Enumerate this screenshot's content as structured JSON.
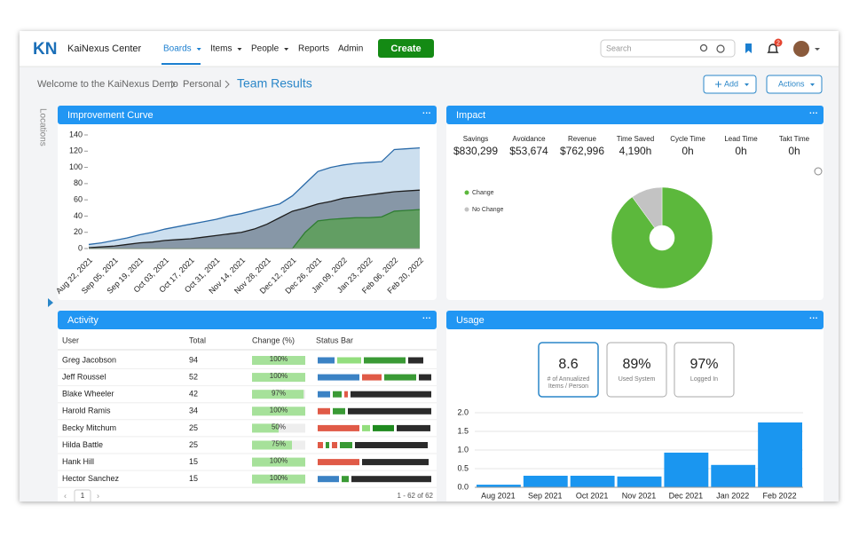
{
  "nav": {
    "logo": "KN",
    "app": "KaiNexus Center",
    "menu": [
      "Boards",
      "Items",
      "People",
      "Reports",
      "Admin"
    ],
    "create": "Create",
    "search": "Search",
    "badge": "2"
  },
  "breadcrumb": [
    "Welcome to the KaiNexus Demo",
    "Personal",
    "Team Results"
  ],
  "buttons": [
    "Add",
    "Actions"
  ],
  "sidebar": "Locations",
  "improvement": {
    "title": "Improvement Curve",
    "chart": {
      "type": "area",
      "categories": [
        "Aug 22, 2021",
        null,
        "Sep 05, 2021",
        null,
        "Sep 19, 2021",
        null,
        "Oct 03, 2021",
        null,
        "Oct 17, 2021",
        null,
        "Oct 31, 2021",
        null,
        "Nov 14, 2021",
        null,
        "Nov 28, 2021",
        null,
        "Dec 12, 2021",
        null,
        "Dec 26, 2021",
        null,
        "Jan 09, 2022",
        null,
        "Jan 23, 2022",
        null,
        "Feb 06, 2022",
        null,
        "Feb 20, 2022"
      ],
      "series": [
        {
          "color": "#2a6aa8",
          "fill": "#c6dbed",
          "values": [
            5,
            7,
            10,
            13,
            17,
            20,
            24,
            27,
            30,
            33,
            36,
            40,
            43,
            47,
            51,
            55,
            65,
            80,
            95,
            100,
            103,
            105,
            106,
            107,
            122,
            123,
            124
          ]
        },
        {
          "color": "#1e1e1e",
          "fill": "#7f8f9f",
          "values": [
            1,
            2,
            3,
            5,
            7,
            8,
            10,
            11,
            12,
            14,
            16,
            18,
            20,
            24,
            30,
            38,
            46,
            50,
            55,
            58,
            62,
            64,
            66,
            68,
            70,
            71,
            72
          ]
        },
        {
          "color": "#2f7d32",
          "fill": "#5e9f5c",
          "values": [
            0,
            0,
            0,
            0,
            0,
            0,
            0,
            0,
            0,
            0,
            0,
            0,
            0,
            0,
            0,
            0,
            0,
            20,
            34,
            36,
            37,
            38,
            38,
            39,
            46,
            47,
            48
          ]
        }
      ],
      "ylim": [
        0,
        140
      ],
      "yticks": [
        0,
        20,
        40,
        60,
        80,
        100,
        120,
        140
      ]
    }
  },
  "impact": {
    "title": "Impact",
    "stats": [
      {
        "label": "Savings",
        "value": "$830,299"
      },
      {
        "label": "Avoidance",
        "value": "$53,674"
      },
      {
        "label": "Revenue",
        "value": "$762,996"
      },
      {
        "label": "Time Saved",
        "value": "4,190h"
      },
      {
        "label": "Cycle Time",
        "value": "0h"
      },
      {
        "label": "Lead Time",
        "value": "0h"
      },
      {
        "label": "Takt Time",
        "value": "0h"
      }
    ],
    "chart": {
      "type": "pie",
      "categories": [
        "Change",
        "No Change"
      ],
      "values": [
        90,
        10
      ],
      "colors": [
        "#5cb83c",
        "#c3c3c3"
      ]
    }
  },
  "activity": {
    "title": "Activity",
    "columns": [
      "User",
      "Total",
      "Change (%)",
      "Status Bar"
    ],
    "rows": [
      {
        "user": "Greg Jacobson",
        "total": "94",
        "change": 100,
        "change_label": "100%",
        "status": {
          "values": [
            19,
            27,
            47,
            17
          ],
          "colors": [
            "#3b82c4",
            "#93de7e",
            "#3a9a35",
            "#2b2b2b"
          ]
        }
      },
      {
        "user": "Jeff Roussel",
        "total": "52",
        "change": 100,
        "change_label": "100%",
        "status": {
          "values": [
            47,
            22,
            36,
            14
          ],
          "colors": [
            "#3b82c4",
            "#e05a47",
            "#3a9a35",
            "#2b2b2b"
          ]
        }
      },
      {
        "user": "Blake Wheeler",
        "total": "42",
        "change": 97,
        "change_label": "97%",
        "status": {
          "values": [
            14,
            10,
            4,
            91
          ],
          "colors": [
            "#3b82c4",
            "#3a9a35",
            "#e05a47",
            "#2b2b2b"
          ]
        }
      },
      {
        "user": "Harold Ramis",
        "total": "34",
        "change": 100,
        "change_label": "100%",
        "status": {
          "values": [
            14,
            14,
            94
          ],
          "colors": [
            "#e05a47",
            "#3a9a35",
            "#2b2b2b"
          ]
        }
      },
      {
        "user": "Becky Mitchum",
        "total": "25",
        "change": 50,
        "change_label": "50%",
        "status": {
          "values": [
            47,
            9,
            24,
            38
          ],
          "colors": [
            "#e05a47",
            "#93de7e",
            "#1f8a1f",
            "#2b2b2b"
          ]
        }
      },
      {
        "user": "Hilda Battle",
        "total": "25",
        "change": 75,
        "change_label": "75%",
        "status": {
          "values": [
            6,
            4,
            6,
            14,
            82
          ],
          "colors": [
            "#e05a47",
            "#3a9a35",
            "#e05a47",
            "#3a9a35",
            "#2b2b2b"
          ]
        }
      },
      {
        "user": "Hank Hill",
        "total": "15",
        "change": 100,
        "change_label": "100%",
        "status": {
          "values": [
            47,
            75
          ],
          "colors": [
            "#e05a47",
            "#2b2b2b"
          ]
        }
      },
      {
        "user": "Hector Sanchez",
        "total": "15",
        "change": 100,
        "change_label": "100%",
        "status": {
          "values": [
            24,
            8,
            90
          ],
          "colors": [
            "#3b82c4",
            "#3a9a35",
            "#2b2b2b"
          ]
        }
      }
    ],
    "page": "1",
    "range": "1 - 62 of 62"
  },
  "usage": {
    "title": "Usage",
    "cards": [
      {
        "value": "8.6",
        "label": "# of Annualized Items / Person"
      },
      {
        "value": "89%",
        "label": "Used System"
      },
      {
        "value": "97%",
        "label": "Logged In"
      }
    ],
    "chart": {
      "type": "bar",
      "categories": [
        "Aug 2021",
        "Sep 2021",
        "Oct 2021",
        "Nov 2021",
        "Dec 2021",
        "Jan 2022",
        "Feb 2022"
      ],
      "values": [
        0.07,
        0.31,
        0.31,
        0.29,
        0.93,
        0.6,
        1.74
      ],
      "color": "#1a96f0",
      "ylim": [
        0,
        2
      ],
      "yticks": [
        {
          "value": 0,
          "label": "0.0"
        },
        {
          "value": 0.5,
          "label": "0.5"
        },
        {
          "value": 1,
          "label": "1.0"
        },
        {
          "value": 1.5,
          "label": "1.5"
        },
        {
          "value": 2,
          "label": "2.0"
        }
      ],
      "grid": true
    }
  }
}
